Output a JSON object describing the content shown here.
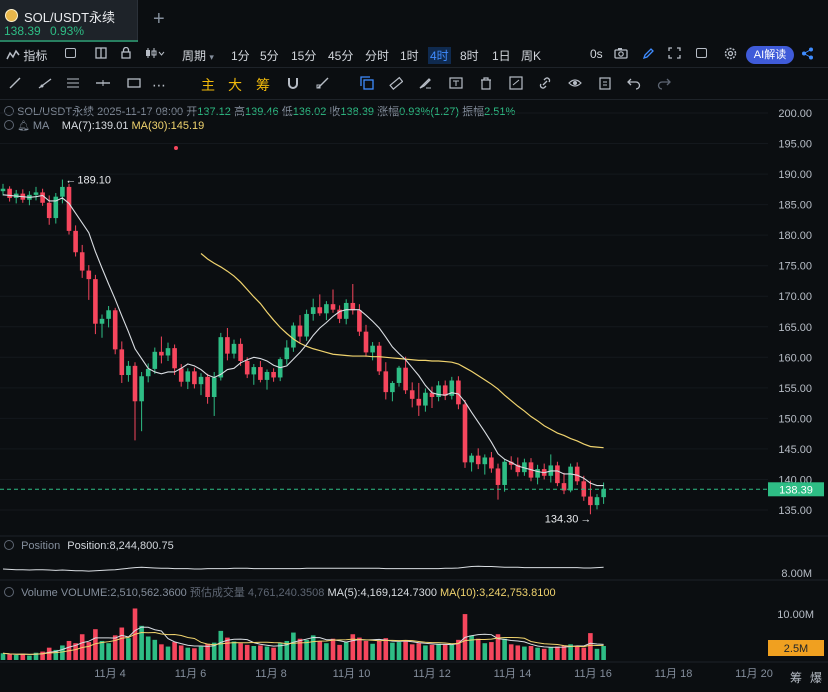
{
  "tab": {
    "title": "SOL/USDT永续",
    "price": "138.39",
    "change": "0.93%",
    "add": "+"
  },
  "toolbar": {
    "indicators": "指标",
    "period": "周期",
    "intervals": [
      "1分",
      "5分",
      "15分",
      "45分",
      "分时",
      "1时",
      "4时",
      "8时",
      "1日",
      "周K"
    ],
    "active_interval": "4时",
    "countdown": "0s",
    "ai": "AI解读"
  },
  "drawtools": {
    "main": "主",
    "big": "大",
    "chip": "筹"
  },
  "info": {
    "symbol": "SOL/USDT永续",
    "datetime": "2025-11-17 08:00",
    "open_label": "开",
    "open": "137.12",
    "high_label": "高",
    "high": "139.46",
    "low_label": "低",
    "low": "136.02",
    "close_label": "收",
    "close": "138.39",
    "chg_label": "涨幅",
    "chg": "0.93%(1.27)",
    "amp_label": "振幅",
    "amp": "2.51%",
    "ma_label": "MA",
    "ma7": "MA(7):139.01",
    "ma30": "MA(30):145.19"
  },
  "position": {
    "label": "Position",
    "value": "Position:8,244,800.75",
    "scale": "8.00M"
  },
  "volume": {
    "label": "Volume",
    "value": "VOLUME:2,510,562.3600",
    "est": "预估成交量 4,761,240.3508",
    "ma5": "MA(5):4,169,124.7300",
    "ma10": "MA(10):3,242,753.8100",
    "scale_top": "10.00M",
    "current": "2.5M"
  },
  "annotations": {
    "high": "189.10",
    "low": "134.30"
  },
  "price_scale": {
    "current": "138.39"
  },
  "bottom": {
    "a": "筹",
    "b": "爆"
  },
  "colors": {
    "up": "#2ebd85",
    "down": "#f6465d",
    "ma7": "#d9dde2",
    "ma30": "#f0d36e",
    "bg": "#0b0e11"
  },
  "chart_data": {
    "type": "candlestick",
    "y_ticks": [
      200,
      195,
      190,
      185,
      180,
      175,
      170,
      165,
      160,
      155,
      150,
      145,
      140,
      135
    ],
    "ylim": [
      134,
      200
    ],
    "x_labels": [
      "11月 4",
      "11月 6",
      "11月 8",
      "11月 10",
      "11月 12",
      "11月 14",
      "11月 16",
      "11月 18",
      "11月 20"
    ],
    "candles": [
      [
        187.2,
        188.4,
        186.5,
        187.6
      ],
      [
        187.6,
        188.0,
        185.5,
        186.1
      ],
      [
        186.1,
        187.4,
        185.2,
        186.8
      ],
      [
        186.8,
        187.5,
        185.3,
        185.8
      ],
      [
        185.8,
        187.2,
        184.9,
        186.6
      ],
      [
        186.6,
        187.9,
        185.7,
        187.0
      ],
      [
        187.0,
        187.6,
        184.8,
        185.3
      ],
      [
        185.3,
        186.5,
        181.7,
        182.8
      ],
      [
        182.8,
        186.9,
        181.9,
        186.3
      ],
      [
        186.3,
        189.1,
        185.2,
        187.9
      ],
      [
        187.9,
        188.4,
        180.1,
        180.7
      ],
      [
        180.7,
        181.6,
        176.5,
        177.2
      ],
      [
        177.2,
        178.4,
        173.0,
        174.2
      ],
      [
        174.2,
        175.1,
        169.4,
        172.8
      ],
      [
        172.8,
        173.5,
        163.8,
        165.5
      ],
      [
        165.5,
        167.0,
        163.2,
        166.3
      ],
      [
        166.3,
        168.4,
        164.9,
        167.7
      ],
      [
        167.7,
        168.1,
        160.5,
        161.3
      ],
      [
        161.3,
        162.6,
        155.8,
        157.1
      ],
      [
        157.1,
        159.4,
        156.0,
        158.6
      ],
      [
        158.6,
        159.2,
        146.4,
        152.8
      ],
      [
        152.8,
        157.6,
        147.9,
        156.9
      ],
      [
        156.9,
        159.0,
        155.9,
        158.1
      ],
      [
        158.1,
        161.6,
        157.3,
        160.9
      ],
      [
        160.9,
        163.4,
        159.0,
        160.3
      ],
      [
        160.3,
        162.4,
        159.4,
        161.5
      ],
      [
        161.5,
        162.1,
        157.1,
        158.2
      ],
      [
        158.2,
        158.9,
        155.2,
        156.0
      ],
      [
        156.0,
        158.2,
        154.8,
        157.7
      ],
      [
        157.7,
        158.3,
        154.9,
        155.6
      ],
      [
        155.6,
        157.4,
        153.8,
        156.8
      ],
      [
        156.8,
        157.3,
        152.4,
        153.5
      ],
      [
        153.5,
        157.6,
        150.4,
        156.7
      ],
      [
        156.7,
        164.0,
        156.2,
        163.3
      ],
      [
        163.3,
        164.8,
        159.5,
        160.6
      ],
      [
        160.6,
        162.9,
        159.8,
        162.2
      ],
      [
        162.2,
        163.1,
        158.6,
        159.4
      ],
      [
        159.4,
        160.0,
        156.6,
        157.2
      ],
      [
        157.2,
        158.9,
        155.5,
        158.4
      ],
      [
        158.4,
        159.4,
        155.9,
        156.3
      ],
      [
        156.3,
        158.0,
        154.7,
        157.6
      ],
      [
        157.6,
        158.2,
        156.0,
        156.7
      ],
      [
        156.7,
        160.0,
        156.1,
        159.7
      ],
      [
        159.7,
        162.8,
        158.8,
        161.6
      ],
      [
        161.6,
        165.7,
        160.9,
        165.2
      ],
      [
        165.2,
        166.9,
        162.4,
        163.4
      ],
      [
        163.4,
        167.8,
        162.7,
        167.1
      ],
      [
        167.1,
        169.6,
        166.0,
        168.2
      ],
      [
        168.2,
        170.3,
        166.8,
        167.2
      ],
      [
        167.2,
        169.2,
        166.1,
        168.7
      ],
      [
        168.7,
        171.1,
        167.3,
        167.8
      ],
      [
        167.8,
        168.5,
        165.6,
        166.3
      ],
      [
        166.3,
        169.5,
        165.4,
        168.9
      ],
      [
        168.9,
        172.0,
        167.0,
        167.7
      ],
      [
        167.7,
        168.7,
        163.5,
        164.2
      ],
      [
        164.2,
        165.3,
        160.1,
        160.8
      ],
      [
        160.8,
        162.5,
        159.5,
        161.9
      ],
      [
        161.9,
        162.5,
        157.1,
        157.7
      ],
      [
        157.7,
        159.2,
        153.1,
        154.3
      ],
      [
        154.3,
        156.1,
        152.8,
        155.8
      ],
      [
        155.8,
        158.6,
        155.2,
        158.3
      ],
      [
        158.3,
        160.1,
        154.0,
        154.6
      ],
      [
        154.6,
        155.9,
        151.8,
        153.2
      ],
      [
        153.2,
        155.8,
        150.4,
        152.1
      ],
      [
        152.1,
        154.9,
        151.1,
        154.2
      ],
      [
        154.2,
        155.2,
        151.7,
        153.5
      ],
      [
        153.5,
        156.1,
        152.8,
        155.4
      ],
      [
        155.4,
        156.2,
        153.0,
        153.7
      ],
      [
        153.7,
        156.8,
        153.1,
        156.2
      ],
      [
        156.2,
        156.9,
        151.5,
        152.3
      ],
      [
        152.3,
        153.0,
        141.9,
        142.8
      ],
      [
        142.8,
        144.3,
        141.3,
        143.9
      ],
      [
        143.9,
        145.1,
        141.7,
        142.5
      ],
      [
        142.5,
        144.1,
        140.8,
        143.6
      ],
      [
        143.6,
        144.5,
        141.1,
        141.8
      ],
      [
        141.8,
        142.6,
        136.7,
        139.1
      ],
      [
        139.1,
        143.3,
        138.0,
        142.9
      ],
      [
        142.9,
        143.8,
        141.6,
        142.4
      ],
      [
        142.4,
        143.6,
        140.5,
        141.2
      ],
      [
        141.2,
        143.4,
        140.6,
        142.8
      ],
      [
        142.8,
        143.5,
        139.7,
        140.3
      ],
      [
        140.3,
        142.4,
        139.2,
        141.7
      ],
      [
        141.7,
        142.6,
        140.0,
        140.6
      ],
      [
        140.6,
        144.1,
        139.5,
        142.3
      ],
      [
        142.3,
        142.9,
        138.9,
        139.4
      ],
      [
        139.4,
        141.1,
        137.6,
        138.2
      ],
      [
        138.2,
        142.6,
        137.9,
        142.1
      ],
      [
        142.1,
        142.8,
        139.1,
        139.7
      ],
      [
        139.7,
        140.6,
        136.5,
        137.2
      ],
      [
        137.2,
        139.8,
        134.3,
        135.8
      ],
      [
        135.8,
        137.6,
        135.1,
        137.1
      ],
      [
        137.1,
        139.5,
        136.0,
        138.4
      ]
    ],
    "ma7": [
      186.6,
      186.5,
      186.4,
      186.3,
      186.2,
      186.3,
      186.5,
      185.6,
      185.6,
      186.1,
      185.2,
      183.6,
      182.0,
      180.4,
      177.3,
      174.6,
      172.0,
      169.5,
      166.8,
      164.2,
      161.4,
      159.8,
      158.2,
      157.6,
      157.3,
      157.6,
      157.6,
      158.2,
      158.9,
      158.6,
      158.0,
      157.1,
      156.7,
      157.2,
      158.0,
      158.2,
      159.1,
      159.6,
      160.0,
      159.8,
      159.4,
      158.7,
      158.3,
      158.6,
      159.7,
      160.8,
      162.1,
      163.6,
      164.8,
      165.7,
      166.7,
      167.5,
      167.8,
      167.8,
      167.8,
      166.9,
      165.9,
      164.8,
      163.3,
      161.7,
      160.6,
      159.6,
      158.3,
      157.0,
      155.4,
      154.2,
      153.9,
      153.8,
      154.2,
      154.0,
      152.7,
      151.0,
      149.4,
      147.8,
      146.1,
      144.2,
      143.3,
      142.8,
      142.2,
      141.9,
      141.6,
      141.3,
      141.1,
      141.4,
      141.4,
      140.9,
      140.9,
      140.7,
      140.2,
      139.4,
      139.0,
      139.0
    ],
    "ma30": [
      null,
      null,
      null,
      null,
      null,
      null,
      null,
      null,
      null,
      null,
      null,
      null,
      null,
      null,
      null,
      null,
      null,
      null,
      null,
      null,
      null,
      null,
      null,
      null,
      null,
      null,
      null,
      null,
      null,
      null,
      177.0,
      176.1,
      175.4,
      174.8,
      174.1,
      173.3,
      172.3,
      171.1,
      169.9,
      168.8,
      167.4,
      166.1,
      164.9,
      163.9,
      163.0,
      162.3,
      161.8,
      161.4,
      161.1,
      160.8,
      160.5,
      160.4,
      160.3,
      160.2,
      160.2,
      160.2,
      160.1,
      160.1,
      160.0,
      159.9,
      159.8,
      159.7,
      159.6,
      159.5,
      159.5,
      159.4,
      159.4,
      159.3,
      159.2,
      158.9,
      158.3,
      157.7,
      157.0,
      156.3,
      155.6,
      154.8,
      153.8,
      152.9,
      152.0,
      151.2,
      150.3,
      149.6,
      148.8,
      148.2,
      147.6,
      147.2,
      146.7,
      146.3,
      145.8,
      145.4,
      145.3,
      145.2
    ],
    "volume": [
      1.2,
      1.0,
      0.9,
      1.1,
      0.8,
      1.3,
      1.5,
      2.2,
      1.8,
      2.6,
      3.4,
      3.0,
      4.6,
      3.2,
      5.5,
      3.4,
      3.0,
      4.4,
      5.8,
      3.9,
      9.2,
      6.1,
      4.2,
      3.6,
      2.8,
      2.4,
      3.2,
      2.6,
      2.2,
      2.1,
      2.4,
      2.9,
      3.1,
      5.2,
      4.0,
      3.3,
      3.0,
      2.7,
      2.5,
      2.6,
      2.4,
      2.2,
      3.0,
      3.4,
      4.9,
      3.8,
      3.6,
      4.4,
      3.3,
      3.0,
      3.8,
      2.7,
      3.2,
      4.6,
      4.0,
      3.4,
      2.9,
      3.5,
      3.9,
      3.1,
      3.2,
      3.3,
      2.8,
      3.0,
      2.6,
      2.7,
      2.9,
      2.8,
      2.7,
      3.6,
      8.2,
      4.4,
      3.8,
      3.0,
      3.2,
      4.6,
      3.8,
      2.8,
      2.6,
      2.4,
      2.5,
      2.2,
      2.0,
      2.3,
      2.4,
      2.6,
      2.8,
      2.5,
      2.2,
      4.8,
      2.0,
      2.5
    ],
    "volume_ylim": [
      0,
      10
    ],
    "position": [
      8.2,
      8.19,
      8.18,
      8.18,
      8.17,
      8.18,
      8.18,
      8.17,
      8.16,
      8.17,
      8.16,
      8.15,
      8.15,
      8.14,
      8.15,
      8.16,
      8.17,
      8.18,
      8.2,
      8.22,
      8.24,
      8.25,
      8.24,
      8.23,
      8.22,
      8.22,
      8.21,
      8.21,
      8.21,
      8.2,
      8.2,
      8.21,
      8.21,
      8.21,
      8.21,
      8.22,
      8.22,
      8.22,
      8.21,
      8.21,
      8.21,
      8.21,
      8.21,
      8.21,
      8.21,
      8.21,
      8.22,
      8.22,
      8.22,
      8.22,
      8.22,
      8.22,
      8.22,
      8.22,
      8.22,
      8.22,
      8.22,
      8.22,
      8.21,
      8.21,
      8.21,
      8.21,
      8.21,
      8.21,
      8.21,
      8.21,
      8.21,
      8.22,
      8.22,
      8.23,
      8.25,
      8.27,
      8.28,
      8.27,
      8.27,
      8.26,
      8.25,
      8.25,
      8.25,
      8.24,
      8.24,
      8.24,
      8.24,
      8.24,
      8.24,
      8.24,
      8.24,
      8.24,
      8.23,
      8.23,
      8.24,
      8.25
    ],
    "position_ylim": [
      7.6,
      8.6
    ]
  }
}
